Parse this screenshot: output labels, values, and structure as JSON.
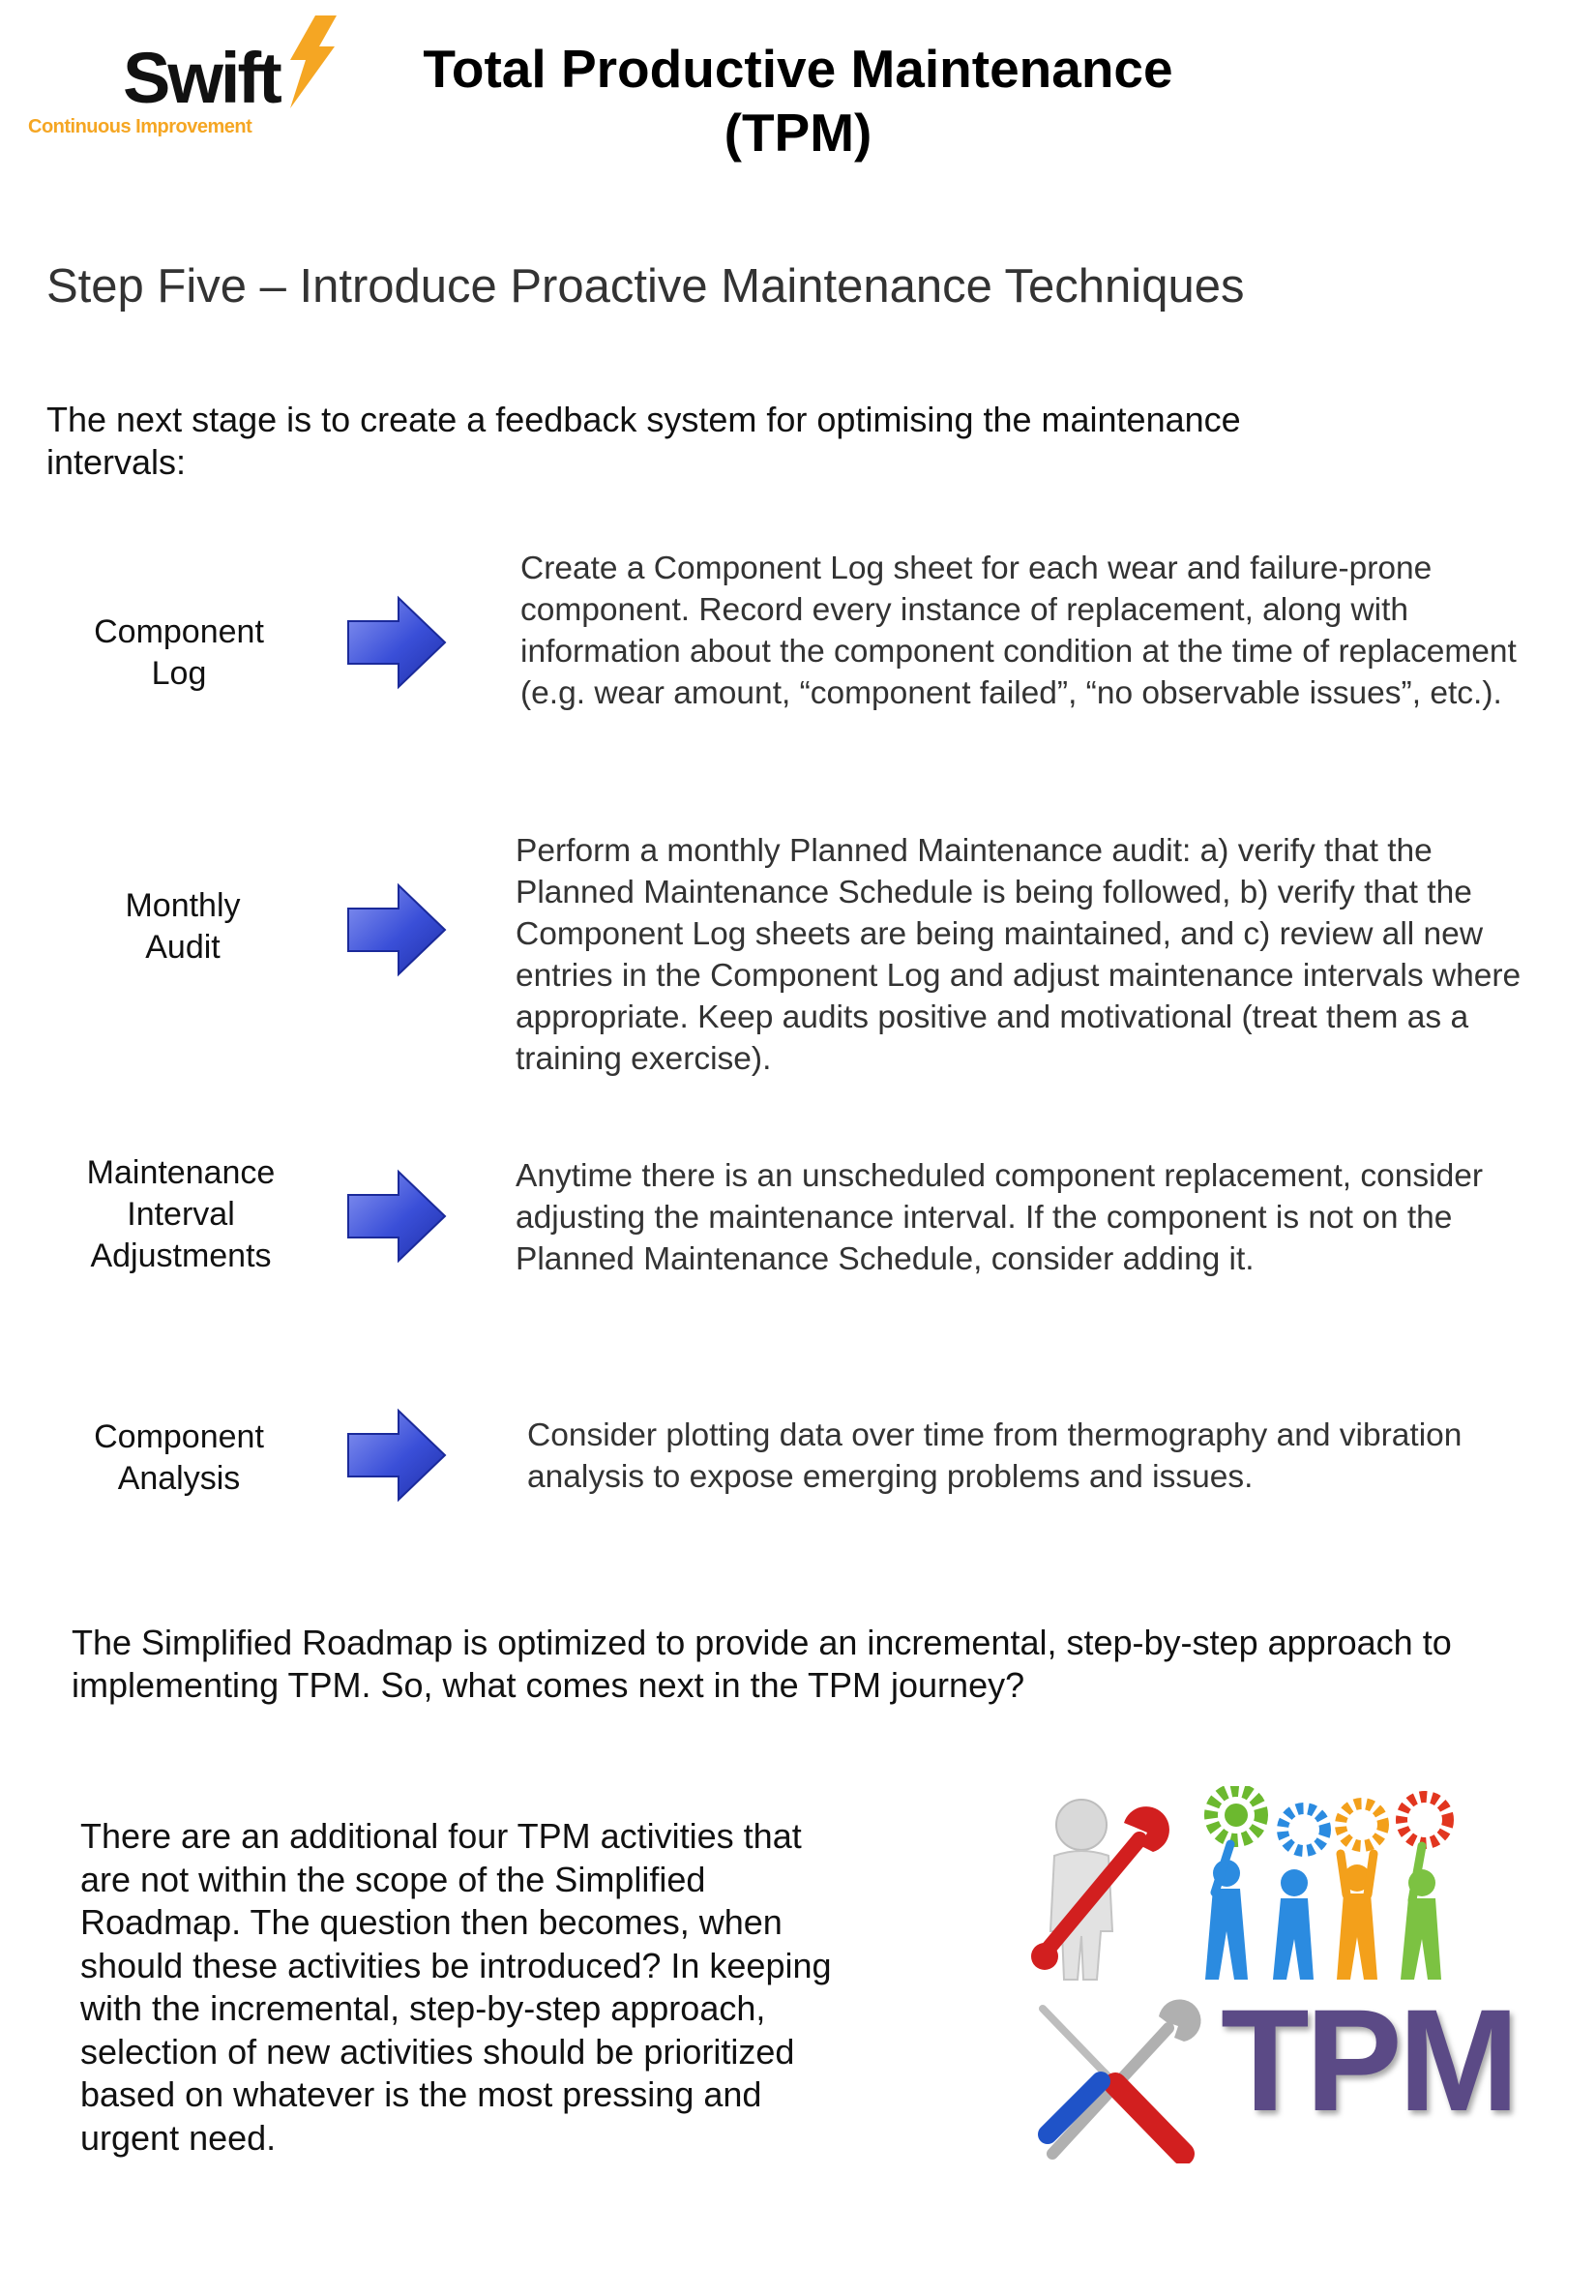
{
  "logo": {
    "word": "Swift",
    "tagline": "Continuous Improvement",
    "colors": {
      "word": "#111111",
      "bolt": "#f5a623"
    }
  },
  "title": {
    "line1": "Total Productive Maintenance",
    "line2": "(TPM)"
  },
  "step_heading": "Step Five – Introduce Proactive Maintenance Techniques",
  "intro": "The next stage is to create a feedback system for optimising the maintenance intervals:",
  "steps": [
    {
      "label_lines": [
        "Component",
        "Log"
      ],
      "description": "Create a Component Log sheet for each wear and failure-prone component. Record every instance of replacement, along with information about the component condition at the time of replacement (e.g. wear amount, “component failed”, “no observable issues”, etc.)."
    },
    {
      "label_lines": [
        "Monthly",
        "Audit"
      ],
      "description": "Perform a monthly Planned Maintenance audit: a) verify that the Planned Maintenance Schedule is being followed, b) verify that the Component Log sheets are being maintained, and c) review all new entries in the Component Log and adjust maintenance intervals where appropriate. Keep audits positive and motivational (treat them as a training exercise)."
    },
    {
      "label_lines": [
        "Maintenance",
        "Interval",
        "Adjustments"
      ],
      "description": "Anytime there is an unscheduled component replacement, consider adjusting the maintenance interval. If the component is not on the Planned Maintenance Schedule, consider adding it."
    },
    {
      "label_lines": [
        "Component",
        "Analysis"
      ],
      "description": "Consider plotting data over time from thermography and vibration analysis to expose emerging problems and issues."
    }
  ],
  "arrow_color": "#3a4fd8",
  "roadmap_text": "The Simplified Roadmap is optimized to provide an incremental, step-by-step approach to implementing TPM. So, what comes next in the TPM journey?",
  "activities_text": "There are an additional four TPM activities that are not within the scope of the Simplified Roadmap. The question then becomes, when should these activities be introduced? In keeping with the incremental, step-by-step approach, selection of new activities should be prioritized based on whatever is the most pressing and urgent need.",
  "tpm_graphic": {
    "word": "TPM",
    "icons": [
      "wrench-person-icon",
      "gears-team-icon",
      "screwdriver-wrench-icon"
    ],
    "colors": {
      "tpm_text": "#5b4a86",
      "wrench": "#d21f1f",
      "gear_green": "#6cb92f",
      "gear_blue": "#2b8be0",
      "gear_orange": "#f3a01b"
    }
  }
}
